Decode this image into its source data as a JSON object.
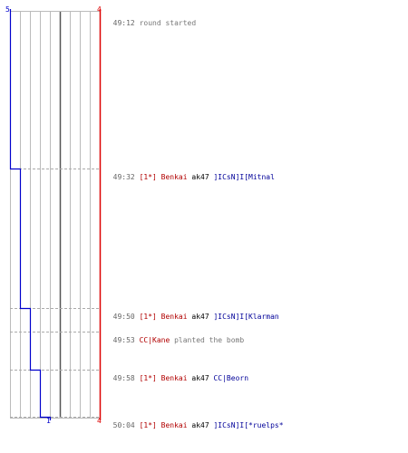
{
  "scoreboard": {
    "left_start": "5",
    "left_end": "1",
    "right_start": "4",
    "right_end": "4",
    "left_color": "#0000cc",
    "right_color": "#dd0000"
  },
  "chart_data": {
    "type": "line",
    "series": [
      {
        "values": [
          5,
          4,
          3,
          2,
          1
        ]
      },
      {
        "values": [
          4,
          4,
          4,
          4,
          4
        ]
      }
    ]
  },
  "events": [
    {
      "time": "49:12",
      "message": "round started"
    },
    {
      "time": "49:32",
      "clan": "[1*]",
      "killer": "Benkai",
      "weapon": "ak47",
      "victim": "]ICsN]I[Mitnal"
    },
    {
      "time": "49:50",
      "clan": "[1*]",
      "killer": "Benkai",
      "weapon": "ak47",
      "victim": "]ICsN]I[Klarman"
    },
    {
      "time": "49:53",
      "actor": "CC|Kane",
      "message": "planted the bomb"
    },
    {
      "time": "49:58",
      "clan": "[1*]",
      "killer": "Benkai",
      "weapon": "ak47",
      "victim": "CC|Beorn"
    },
    {
      "time": "50:04",
      "clan": "[1*]",
      "killer": "Benkai",
      "weapon": "ak47",
      "victim": "]ICsN]I[*ruelps*"
    }
  ]
}
